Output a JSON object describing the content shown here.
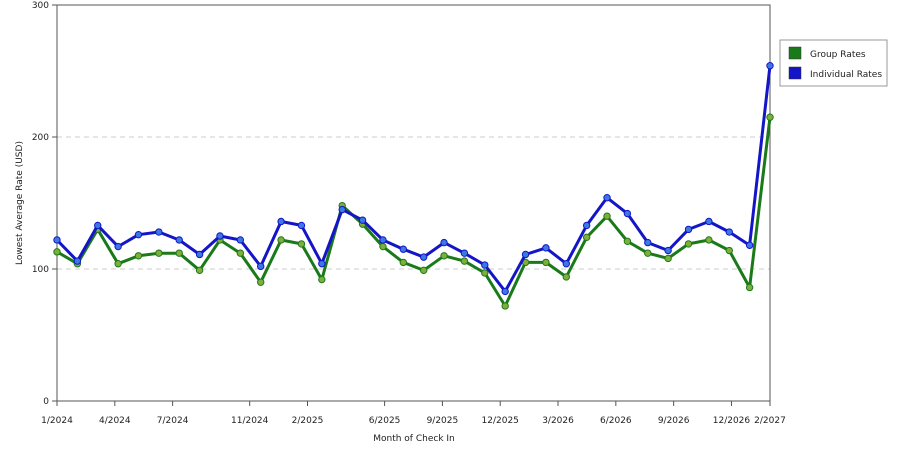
{
  "chart_data": {
    "type": "line",
    "title": "",
    "xlabel": "Month of Check In",
    "ylabel": "Lowest Average Rate (USD)",
    "ylim": [
      0,
      300
    ],
    "yticks": [
      0,
      100,
      200,
      300
    ],
    "grid": true,
    "legend_position": "right",
    "x": [
      "1/2024",
      "2/2024",
      "3/2024",
      "4/2024",
      "5/2024",
      "6/2024",
      "7/2024",
      "8/2024",
      "9/2024",
      "10/2024",
      "11/2024",
      "12/2024",
      "1/2025",
      "2/2025",
      "3/2025",
      "4/2025",
      "5/2025",
      "6/2025",
      "7/2025",
      "8/2025",
      "9/2025",
      "10/2025",
      "11/2025",
      "12/2025",
      "1/2026",
      "2/2026",
      "3/2026",
      "4/2026",
      "5/2026",
      "6/2026",
      "7/2026",
      "8/2026",
      "9/2026",
      "10/2026",
      "11/2026",
      "12/2026",
      "1/2027",
      "2/2027"
    ],
    "xtick_labels": [
      "1/2024",
      "4/2024",
      "7/2024",
      "11/2024",
      "2/2025",
      "6/2025",
      "9/2025",
      "12/2025",
      "3/2026",
      "6/2026",
      "9/2026",
      "12/2026",
      "2/2027"
    ],
    "series": [
      {
        "name": "Group Rates",
        "color": "#1a7a1a",
        "marker": "#7fae3a",
        "values": [
          113,
          104,
          130,
          104,
          110,
          112,
          112,
          99,
          122,
          112,
          90,
          122,
          119,
          92,
          148,
          134,
          117,
          105,
          99,
          110,
          106,
          97,
          72,
          105,
          105,
          94,
          124,
          140,
          121,
          112,
          108,
          119,
          122,
          114,
          86,
          215,
          null,
          null
        ]
      },
      {
        "name": "Individual Rates",
        "color": "#1515c8",
        "marker": "#3a7ae0",
        "values": [
          122,
          106,
          133,
          117,
          126,
          128,
          122,
          111,
          125,
          122,
          102,
          136,
          133,
          104,
          145,
          137,
          122,
          115,
          109,
          120,
          112,
          103,
          83,
          111,
          116,
          104,
          133,
          154,
          142,
          120,
          114,
          130,
          136,
          128,
          118,
          254,
          null,
          null
        ]
      }
    ]
  }
}
